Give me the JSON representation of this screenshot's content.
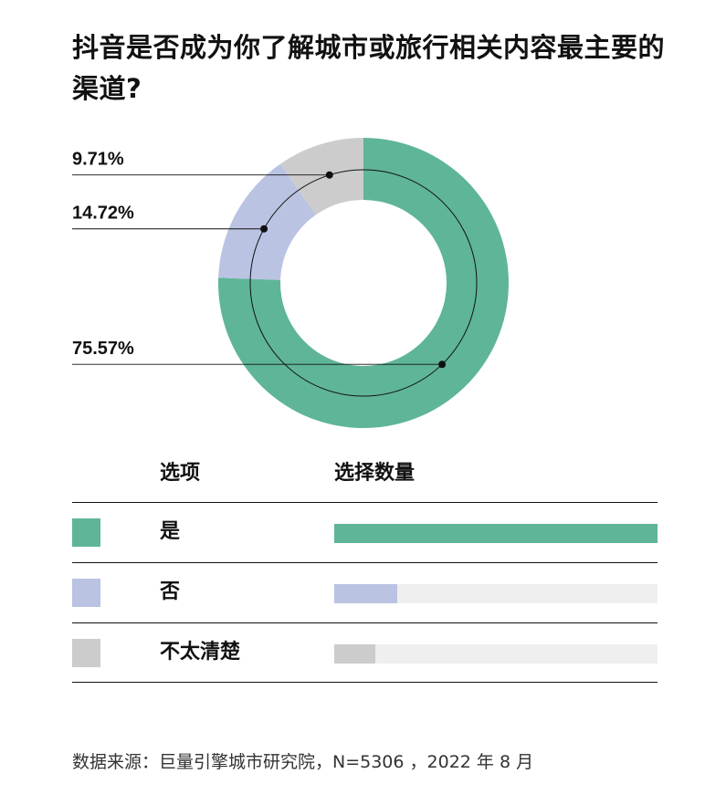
{
  "title": "抖音是否成为你了解城市或旅行相关内容最主要的渠道?",
  "chart_data": {
    "type": "pie",
    "categories": [
      "是",
      "否",
      "不太清楚"
    ],
    "values": [
      75.57,
      14.72,
      9.71
    ],
    "value_labels": [
      "75.57%",
      "14.72%",
      "9.71%"
    ],
    "colors": [
      "#5fb598",
      "#bac3e2",
      "#cccccc"
    ]
  },
  "table": {
    "header_option": "选项",
    "header_count": "选择数量",
    "rows": [
      {
        "label": "是",
        "color": "#5fb598",
        "share": 0.7557
      },
      {
        "label": "否",
        "color": "#bac3e2",
        "share": 0.1472
      },
      {
        "label": "不太清楚",
        "color": "#cccccc",
        "share": 0.0971
      }
    ]
  },
  "source": "数据来源：巨量引擎城市研究院，N=5306 ，2022 年 8 月"
}
